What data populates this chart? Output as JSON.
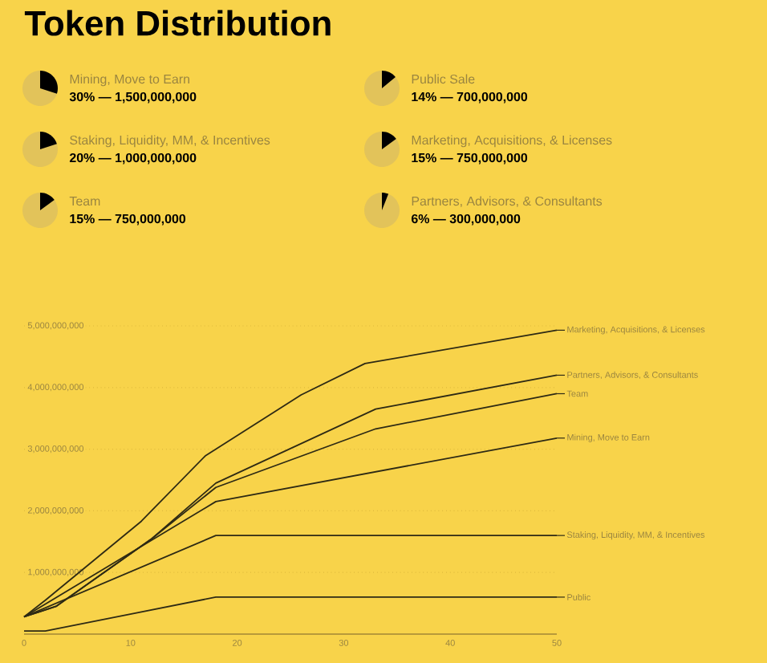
{
  "chart_data": [
    {
      "type": "other",
      "title": "Token Distribution",
      "categories": [
        "Mining, Move to Earn",
        "Public Sale",
        "Staking, Liquidity, MM, & Incentives",
        "Marketing, Acquisitions, & Licenses",
        "Team",
        "Partners, Advisors, & Consultants"
      ],
      "values": [
        30,
        14,
        20,
        15,
        15,
        6
      ],
      "value_labels": [
        "30% — 1,500,000,000",
        "14% — 700,000,000",
        "20% — 1,000,000,000",
        "15% — 750,000,000",
        "15% — 750,000,000",
        "6% — 300,000,000"
      ]
    },
    {
      "type": "line",
      "xlim": [
        0,
        50
      ],
      "ylim": [
        0,
        5000000000
      ],
      "xticks": [
        0,
        10,
        20,
        30,
        40,
        50
      ],
      "yticks": [
        {
          "value": 1000000000,
          "label": "1,000,000,000"
        },
        {
          "value": 2000000000,
          "label": "2,000,000,000"
        },
        {
          "value": 3000000000,
          "label": "3,000,000,000"
        },
        {
          "value": 4000000000,
          "label": "4,000,000,000"
        },
        {
          "value": 5000000000,
          "label": "5,000,000,000"
        }
      ],
      "grid": "y",
      "marker": "none",
      "legend": "right",
      "series": [
        {
          "name": "Marketing, Acquisitions, & Licenses",
          "color": "#2e2a14",
          "x": [
            0,
            2,
            11,
            17,
            26,
            32,
            50
          ],
          "values": [
            280000000,
            550000000,
            1830000000,
            2890000000,
            3880000000,
            4390000000,
            4930000000
          ]
        },
        {
          "name": "Partners, Advisors, & Consultants",
          "color": "#2e2a14",
          "x": [
            0,
            3,
            12,
            18,
            33,
            50
          ],
          "values": [
            280000000,
            450000000,
            1550000000,
            2450000000,
            3650000000,
            4200000000
          ]
        },
        {
          "name": "Team",
          "color": "#2e2a14",
          "x": [
            0,
            3,
            12,
            18,
            33,
            50
          ],
          "values": [
            280000000,
            450000000,
            1550000000,
            2380000000,
            3330000000,
            3900000000
          ]
        },
        {
          "name": "Mining, Move to Earn",
          "color": "#2e2a14",
          "x": [
            0,
            18,
            50
          ],
          "values": [
            280000000,
            2150000000,
            3180000000
          ]
        },
        {
          "name": "Staking, Liquidity, MM, & Incentives",
          "color": "#2e2a14",
          "x": [
            0,
            18,
            50
          ],
          "values": [
            280000000,
            1600000000,
            1600000000
          ]
        },
        {
          "name": "Public",
          "color": "#2e2a14",
          "x": [
            0,
            2,
            18,
            50
          ],
          "values": [
            50000000,
            50000000,
            600000000,
            600000000
          ]
        }
      ]
    }
  ]
}
